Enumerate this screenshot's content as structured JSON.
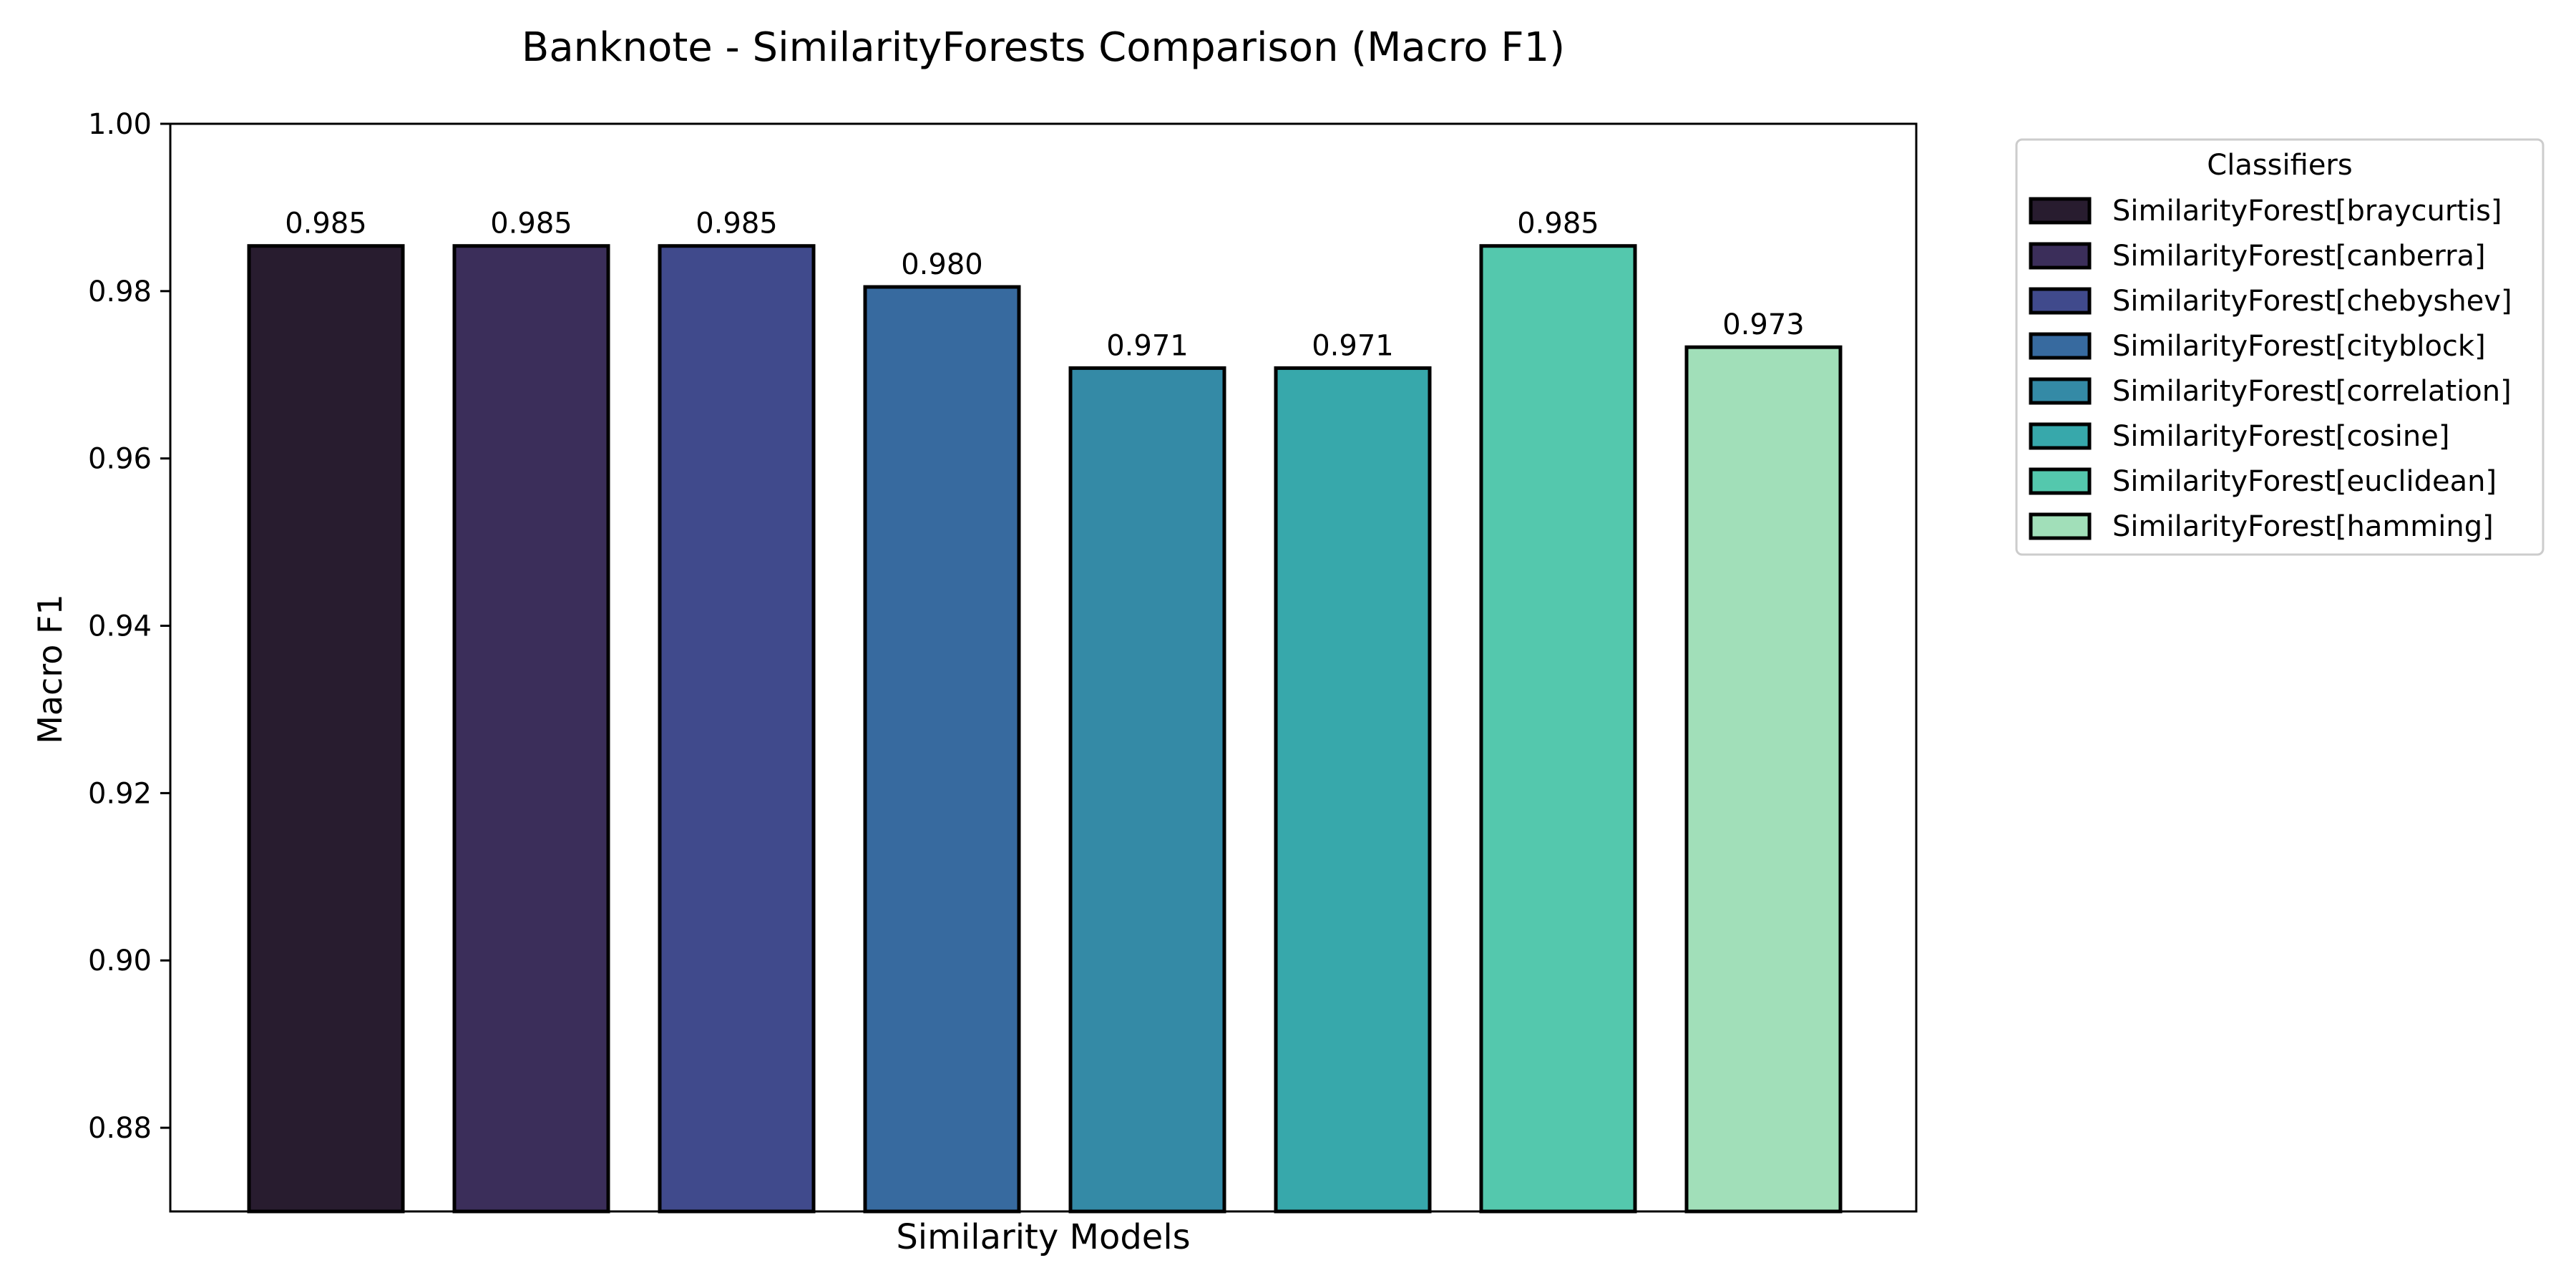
{
  "chart_data": {
    "type": "bar",
    "title": "Banknote - SimilarityForests Comparison (Macro F1)",
    "xlabel": "Similarity Models",
    "ylabel": "Macro F1",
    "ylim": [
      0.87,
      1.0
    ],
    "yticks": [
      "0.88",
      "0.90",
      "0.92",
      "0.94",
      "0.96",
      "0.98",
      "1.00"
    ],
    "categories": [
      "SimilarityForest[braycurtis]",
      "SimilarityForest[canberra]",
      "SimilarityForest[chebyshev]",
      "SimilarityForest[cityblock]",
      "SimilarityForest[correlation]",
      "SimilarityForest[cosine]",
      "SimilarityForest[euclidean]",
      "SimilarityForest[hamming]"
    ],
    "values": [
      0.9854,
      0.9854,
      0.9854,
      0.9805,
      0.9708,
      0.9708,
      0.9854,
      0.9733
    ],
    "value_labels": [
      "0.985",
      "0.985",
      "0.985",
      "0.980",
      "0.971",
      "0.971",
      "0.985",
      "0.973"
    ],
    "colors": [
      "#281c2f",
      "#3b2e5a",
      "#404a8c",
      "#376a9f",
      "#348aa6",
      "#37a8ab",
      "#54c8ad",
      "#a1dfb9"
    ],
    "grid": false,
    "legend": {
      "title": "Classifiers",
      "placement": "outside-right-top"
    }
  }
}
